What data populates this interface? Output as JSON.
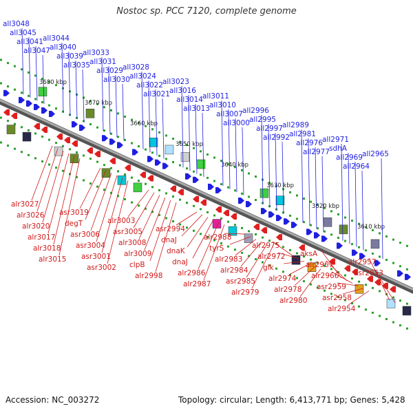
{
  "title": "Nostoc sp. PCC 7120, complete genome",
  "accession": "Accession: NC_003272",
  "summary": "Topology: circular; Length: 6,413,771 bp; Genes: 5,428",
  "colors": {
    "forward": "#1f1fe0",
    "reverse": "#e01f1f",
    "backbone": "#7a7a7a",
    "tick": "#2aa02a"
  },
  "kbp_marks": [
    "3680 kbp",
    "3670 kbp",
    "3660 kbp",
    "3650 kbp",
    "3640 kbp",
    "3630 kbp",
    "3620 kbp",
    "3610 kbp"
  ],
  "top_labels": [
    "all3048",
    "all3045",
    "all3041",
    "all3047",
    "all3044",
    "all3040",
    "all3039",
    "all3035",
    "all3033",
    "all3031",
    "all3029",
    "all3030",
    "all3028",
    "all3024",
    "all3022",
    "all3021",
    "all3023",
    "all3016",
    "all3014",
    "all3013",
    "all3011",
    "all3010",
    "all3007",
    "all3000",
    "all2996",
    "all2995",
    "all2997",
    "all2992",
    "all2989",
    "all2981",
    "all2976",
    "all2977",
    "all2971",
    "sdhA",
    "all2969",
    "all2964",
    "all2965"
  ],
  "bottom_labels": [
    "alr3027",
    "alr3026",
    "alr3020",
    "alr3017",
    "alr3018",
    "alr3015",
    "asr3019",
    "degT",
    "asr3006",
    "asr3004",
    "asr3001",
    "asr3002",
    "alr3003",
    "asr3005",
    "alr3008",
    "alr3009",
    "clpB",
    "alr2998",
    "asr2994",
    "dnaJ",
    "dnaK",
    "dnaJ",
    "alr2986",
    "alr2987",
    "alr2988",
    "tyrS",
    "alr2983",
    "alr2984",
    "asr2985",
    "alr2979",
    "alr2975",
    "alr2972",
    "glk",
    "alr2974",
    "alr2978",
    "alr2980",
    "aksA",
    "alr2967",
    "alr2966",
    "asr2959",
    "asr2958",
    "alr2954",
    "alr2957",
    "asr2953"
  ]
}
